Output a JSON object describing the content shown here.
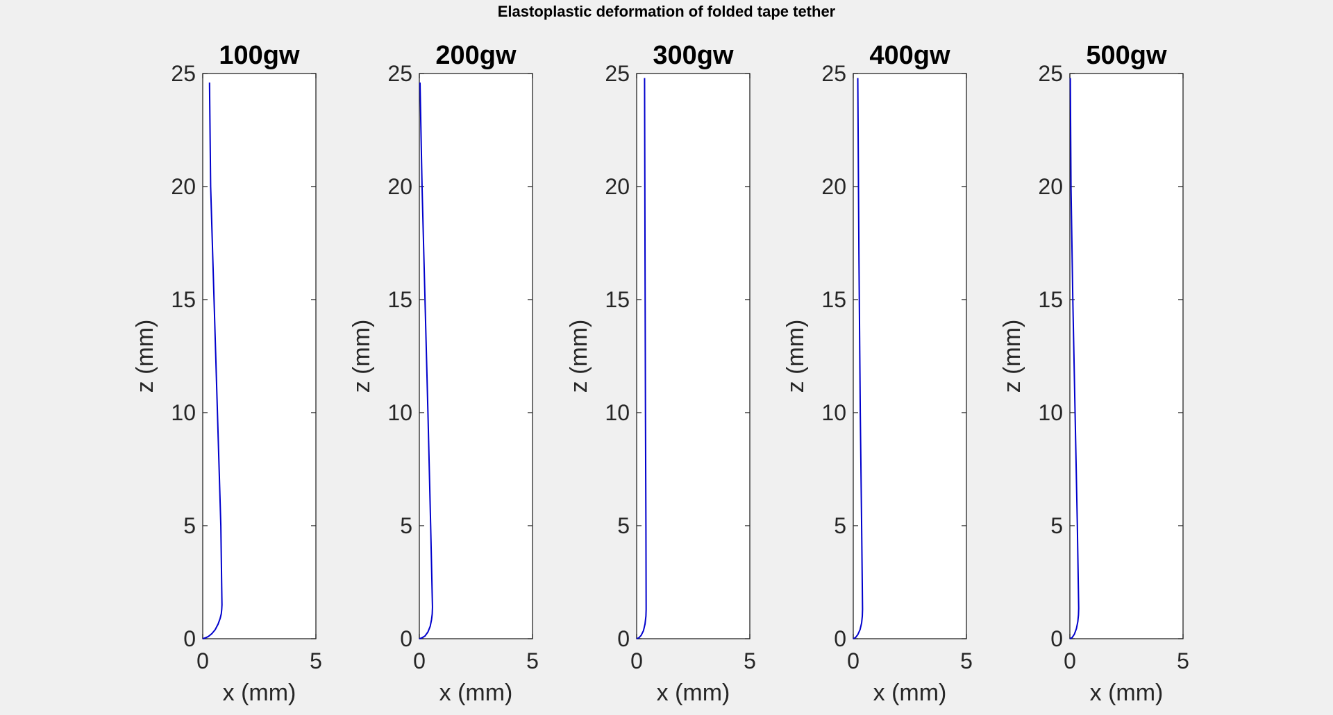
{
  "figure": {
    "title": "Elastoplastic deformation of folded tape tether",
    "line_color": "#0000cc",
    "background": "#f0f0f0"
  },
  "chart_data": [
    {
      "type": "line",
      "title": "100gw",
      "xlabel": "x (mm)",
      "ylabel": "z (mm)",
      "xlim": [
        0,
        5
      ],
      "ylim": [
        0,
        25
      ],
      "xticks": [
        "0",
        "5"
      ],
      "yticks": [
        "0",
        "5",
        "10",
        "15",
        "20",
        "25"
      ],
      "grid": false,
      "series": [
        {
          "x": [
            0,
            0.1,
            0.25,
            0.4,
            0.55,
            0.68,
            0.77,
            0.82,
            0.84,
            0.85,
            0.8,
            0.65,
            0.5,
            0.35,
            0.3
          ],
          "y": [
            0,
            0.03,
            0.1,
            0.22,
            0.4,
            0.65,
            0.9,
            1.1,
            1.3,
            1.5,
            5,
            10,
            15,
            20,
            24.6
          ]
        }
      ]
    },
    {
      "type": "line",
      "title": "200gw",
      "xlabel": "x (mm)",
      "ylabel": "z (mm)",
      "xlim": [
        0,
        5
      ],
      "ylim": [
        0,
        25
      ],
      "xticks": [
        "0",
        "5"
      ],
      "yticks": [
        "0",
        "5",
        "10",
        "15",
        "20",
        "25"
      ],
      "grid": false,
      "series": [
        {
          "x": [
            0,
            0.1,
            0.25,
            0.38,
            0.48,
            0.54,
            0.57,
            0.58,
            0.5,
            0.38,
            0.25,
            0.12,
            0.03
          ],
          "y": [
            0,
            0.03,
            0.12,
            0.3,
            0.55,
            0.85,
            1.1,
            1.4,
            5,
            10,
            15,
            20,
            24.6
          ]
        }
      ]
    },
    {
      "type": "line",
      "title": "300gw",
      "xlabel": "x (mm)",
      "ylabel": "z (mm)",
      "xlim": [
        0,
        5
      ],
      "ylim": [
        0,
        25
      ],
      "xticks": [
        "0",
        "5"
      ],
      "yticks": [
        "0",
        "5",
        "10",
        "15",
        "20",
        "25"
      ],
      "grid": false,
      "series": [
        {
          "x": [
            0,
            0.1,
            0.2,
            0.3,
            0.37,
            0.41,
            0.42,
            0.41,
            0.39,
            0.37,
            0.35
          ],
          "y": [
            0,
            0.04,
            0.15,
            0.35,
            0.65,
            1.0,
            1.3,
            5,
            10,
            17,
            24.8
          ]
        }
      ]
    },
    {
      "type": "line",
      "title": "400gw",
      "xlabel": "x (mm)",
      "ylabel": "z (mm)",
      "xlim": [
        0,
        5
      ],
      "ylim": [
        0,
        25
      ],
      "xticks": [
        "0",
        "5"
      ],
      "yticks": [
        "0",
        "5",
        "10",
        "15",
        "20",
        "25"
      ],
      "grid": false,
      "series": [
        {
          "x": [
            0,
            0.1,
            0.2,
            0.3,
            0.37,
            0.4,
            0.41,
            0.37,
            0.31,
            0.25,
            0.2
          ],
          "y": [
            0,
            0.05,
            0.18,
            0.4,
            0.7,
            1.0,
            1.3,
            5,
            10,
            17,
            24.8
          ]
        }
      ]
    },
    {
      "type": "line",
      "title": "500gw",
      "xlabel": "x (mm)",
      "ylabel": "z (mm)",
      "xlim": [
        0,
        5
      ],
      "ylim": [
        0,
        25
      ],
      "xticks": [
        "0",
        "5"
      ],
      "yticks": [
        "0",
        "5",
        "10",
        "15",
        "20",
        "25"
      ],
      "grid": false,
      "series": [
        {
          "x": [
            0,
            0.1,
            0.2,
            0.29,
            0.35,
            0.38,
            0.39,
            0.33,
            0.23,
            0.13,
            0.05,
            0.02
          ],
          "y": [
            0,
            0.05,
            0.2,
            0.45,
            0.75,
            1.05,
            1.35,
            5,
            10,
            15,
            20,
            24.8
          ]
        }
      ]
    }
  ]
}
